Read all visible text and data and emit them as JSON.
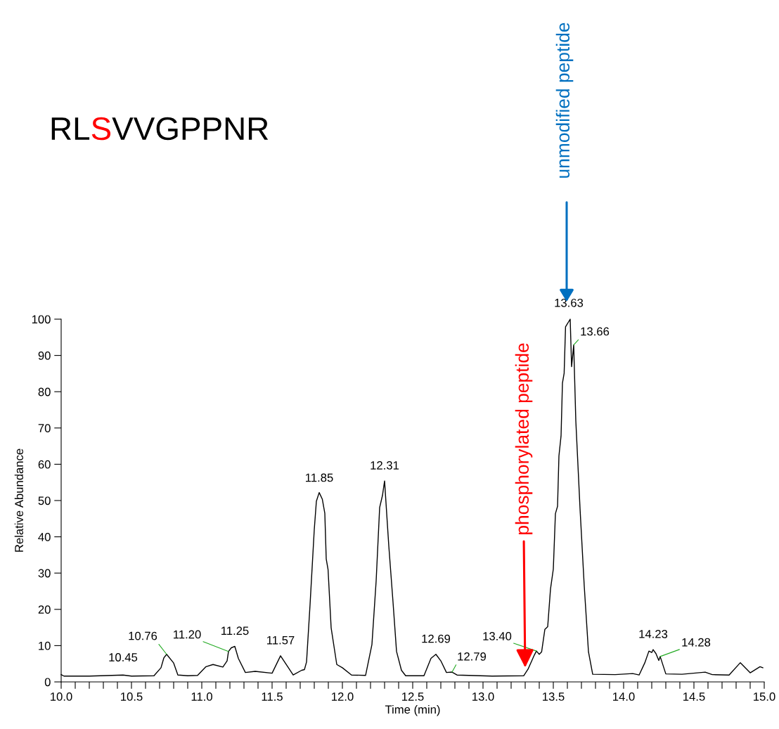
{
  "chart_data": {
    "type": "line",
    "title": "RLSVVGPPNR",
    "xlabel": "Time (min)",
    "ylabel": "Relative Abundance",
    "series": [
      {
        "color": "#000000",
        "x": [
          10.0,
          10.02,
          10.2,
          10.44,
          10.5,
          10.66,
          10.71,
          10.73,
          10.75,
          10.8,
          10.83,
          10.9,
          10.97,
          11.03,
          11.08,
          11.15,
          11.18,
          11.19,
          11.21,
          11.235,
          11.26,
          11.31,
          11.38,
          11.5,
          11.56,
          11.65,
          11.71,
          11.73,
          11.745,
          11.77,
          11.8,
          11.815,
          11.835,
          11.857,
          11.875,
          11.885,
          11.898,
          11.92,
          11.96,
          12.0,
          12.065,
          12.165,
          12.21,
          12.24,
          12.265,
          12.285,
          12.3,
          12.33,
          12.36,
          12.385,
          12.42,
          12.45,
          12.58,
          12.63,
          12.665,
          12.7,
          12.74,
          12.78,
          12.815,
          13.065,
          13.29,
          13.32,
          13.365,
          13.38,
          13.4,
          13.417,
          13.44,
          13.46,
          13.48,
          13.5,
          13.515,
          13.53,
          13.54,
          13.555,
          13.565,
          13.577,
          13.587,
          13.62,
          13.63,
          13.645,
          13.66,
          13.69,
          13.72,
          13.75,
          13.78,
          13.94,
          14.065,
          14.11,
          14.15,
          14.18,
          14.2,
          14.21,
          14.23,
          14.25,
          14.26,
          14.3,
          14.415,
          14.58,
          14.63,
          14.75,
          14.83,
          14.9,
          14.97,
          14.99
        ],
        "values": [
          2.0,
          1.6,
          1.6,
          1.9,
          1.6,
          1.7,
          3.9,
          6.6,
          7.6,
          5.2,
          1.9,
          1.7,
          1.8,
          4.2,
          4.8,
          4.1,
          5.8,
          8.4,
          9.4,
          9.8,
          6.5,
          2.6,
          2.9,
          2.4,
          7.2,
          1.9,
          3.2,
          3.4,
          5.5,
          21.3,
          42,
          49.8,
          52.2,
          50.4,
          46.5,
          33.9,
          31,
          14.9,
          4.8,
          3.9,
          1.9,
          1.8,
          10.3,
          27.8,
          48.1,
          51.4,
          55.4,
          37.5,
          22.0,
          8.4,
          3.2,
          1.7,
          1.7,
          6.5,
          7.6,
          5.8,
          2.6,
          2.7,
          1.9,
          1.6,
          1.7,
          3.5,
          7.4,
          8.5,
          7.6,
          8.3,
          14.5,
          15.2,
          25.6,
          31.1,
          46.4,
          48.4,
          62.3,
          67.8,
          82.4,
          85.1,
          97.9,
          100,
          86.9,
          92.9,
          72,
          47.8,
          26.4,
          8.3,
          2.1,
          2.0,
          2.3,
          1.9,
          5.2,
          8.5,
          8.1,
          8.9,
          7.8,
          5.9,
          7.0,
          2.2,
          2.1,
          2.7,
          2.0,
          1.9,
          5.3,
          2.5,
          4.2,
          3.9
        ]
      }
    ],
    "xlim": [
      10,
      15
    ],
    "ylim": [
      0,
      100
    ],
    "xticks": [
      {
        "value": 10.0,
        "label": "10.0"
      },
      {
        "value": 10.1,
        "label": null
      },
      {
        "value": 10.2,
        "label": null
      },
      {
        "value": 10.3,
        "label": null
      },
      {
        "value": 10.4,
        "label": null
      },
      {
        "value": 10.5,
        "label": "10.5"
      },
      {
        "value": 10.6,
        "label": null
      },
      {
        "value": 10.7,
        "label": null
      },
      {
        "value": 10.8,
        "label": null
      },
      {
        "value": 10.9,
        "label": null
      },
      {
        "value": 11.0,
        "label": "11.0"
      },
      {
        "value": 11.1,
        "label": null
      },
      {
        "value": 11.2,
        "label": null
      },
      {
        "value": 11.3,
        "label": null
      },
      {
        "value": 11.4,
        "label": null
      },
      {
        "value": 11.5,
        "label": "11.5"
      },
      {
        "value": 11.6,
        "label": null
      },
      {
        "value": 11.7,
        "label": null
      },
      {
        "value": 11.8,
        "label": null
      },
      {
        "value": 11.9,
        "label": null
      },
      {
        "value": 12.0,
        "label": "12.0"
      },
      {
        "value": 12.1,
        "label": null
      },
      {
        "value": 12.2,
        "label": null
      },
      {
        "value": 12.3,
        "label": null
      },
      {
        "value": 12.4,
        "label": null
      },
      {
        "value": 12.5,
        "label": "12.5"
      },
      {
        "value": 12.6,
        "label": null
      },
      {
        "value": 12.7,
        "label": null
      },
      {
        "value": 12.8,
        "label": null
      },
      {
        "value": 12.9,
        "label": null
      },
      {
        "value": 13.0,
        "label": "13.0"
      },
      {
        "value": 13.1,
        "label": null
      },
      {
        "value": 13.2,
        "label": null
      },
      {
        "value": 13.3,
        "label": null
      },
      {
        "value": 13.4,
        "label": null
      },
      {
        "value": 13.5,
        "label": "13.5"
      },
      {
        "value": 13.6,
        "label": null
      },
      {
        "value": 13.7,
        "label": null
      },
      {
        "value": 13.8,
        "label": null
      },
      {
        "value": 13.9,
        "label": null
      },
      {
        "value": 14.0,
        "label": "14.0"
      },
      {
        "value": 14.1,
        "label": null
      },
      {
        "value": 14.2,
        "label": null
      },
      {
        "value": 14.3,
        "label": null
      },
      {
        "value": 14.4,
        "label": null
      },
      {
        "value": 14.5,
        "label": "14.5"
      },
      {
        "value": 14.6,
        "label": null
      },
      {
        "value": 14.7,
        "label": null
      },
      {
        "value": 14.8,
        "label": null
      },
      {
        "value": 14.9,
        "label": null
      },
      {
        "value": 15.0,
        "label": "15.0"
      }
    ],
    "yticks": [
      0,
      10,
      20,
      30,
      40,
      50,
      60,
      70,
      80,
      90,
      100
    ],
    "grid": false,
    "legend": false,
    "annotations": [
      {
        "text": "10.45",
        "x": 10.44,
        "y": 1.9
      },
      {
        "text": "10.76",
        "x": 10.75,
        "y": 7.6
      },
      {
        "text": "11.20",
        "x": 11.19,
        "y": 8.4
      },
      {
        "text": "11.25",
        "x": 11.235,
        "y": 9.8
      },
      {
        "text": "11.57",
        "x": 11.56,
        "y": 7.2
      },
      {
        "text": "11.85",
        "x": 11.835,
        "y": 52.2
      },
      {
        "text": "12.31",
        "x": 12.3,
        "y": 55.4
      },
      {
        "text": "12.69",
        "x": 12.665,
        "y": 7.6
      },
      {
        "text": "12.79",
        "x": 12.78,
        "y": 2.7
      },
      {
        "text": "13.40",
        "x": 13.38,
        "y": 8.5
      },
      {
        "text": "13.63",
        "x": 13.62,
        "y": 100
      },
      {
        "text": "13.66",
        "x": 13.645,
        "y": 92.9
      },
      {
        "text": "14.23",
        "x": 14.21,
        "y": 8.9
      },
      {
        "text": "14.28",
        "x": 14.26,
        "y": 7.0
      },
      {
        "text": "phosphorylated peptide",
        "x": 13.3,
        "y": 3
      },
      "unmodified peptide"
    ]
  }
}
